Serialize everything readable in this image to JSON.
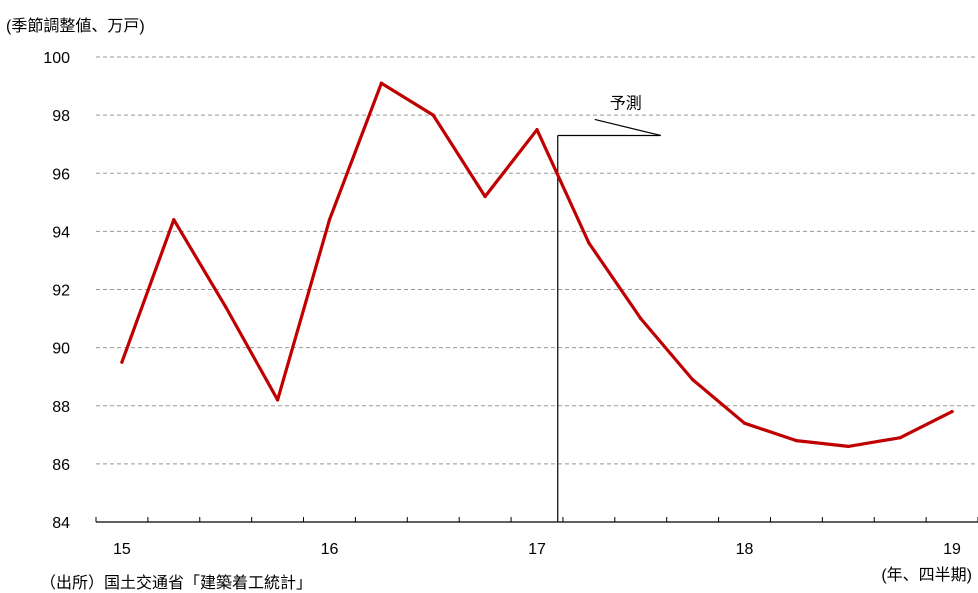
{
  "chart_data": {
    "type": "line",
    "y_unit": "(季節調整値、万戸)",
    "x_unit": "(年、四半期)",
    "source": "（出所）国土交通省「建築着工統計」",
    "ylim": [
      84,
      100
    ],
    "yticks": [
      84,
      86,
      88,
      90,
      92,
      94,
      96,
      98,
      100
    ],
    "x_tick_labels": [
      {
        "label": "15",
        "x": 2015.0
      },
      {
        "label": "16",
        "x": 2016.0
      },
      {
        "label": "17",
        "x": 2017.0
      },
      {
        "label": "18",
        "x": 2018.0
      },
      {
        "label": "19",
        "x": 2019.0
      }
    ],
    "xlim": [
      2014.875,
      2019.125
    ],
    "grid": true,
    "series": [
      {
        "color": "#c00000",
        "points": [
          {
            "x": 2015.0,
            "y": 89.5
          },
          {
            "x": 2015.25,
            "y": 94.4
          },
          {
            "x": 2015.5,
            "y": 91.4
          },
          {
            "x": 2015.75,
            "y": 88.2
          },
          {
            "x": 2016.0,
            "y": 94.4
          },
          {
            "x": 2016.25,
            "y": 99.1
          },
          {
            "x": 2016.5,
            "y": 98.0
          },
          {
            "x": 2016.75,
            "y": 95.2
          },
          {
            "x": 2017.0,
            "y": 97.5
          },
          {
            "x": 2017.25,
            "y": 93.6
          },
          {
            "x": 2017.5,
            "y": 91.0
          },
          {
            "x": 2017.75,
            "y": 88.9
          },
          {
            "x": 2018.0,
            "y": 87.4
          },
          {
            "x": 2018.25,
            "y": 86.8
          },
          {
            "x": 2018.5,
            "y": 86.6
          },
          {
            "x": 2018.75,
            "y": 86.9
          },
          {
            "x": 2019.0,
            "y": 87.8
          }
        ]
      }
    ],
    "forecast": {
      "label": "予測",
      "start_x": 2017.1,
      "bar_y": 97.3
    }
  }
}
